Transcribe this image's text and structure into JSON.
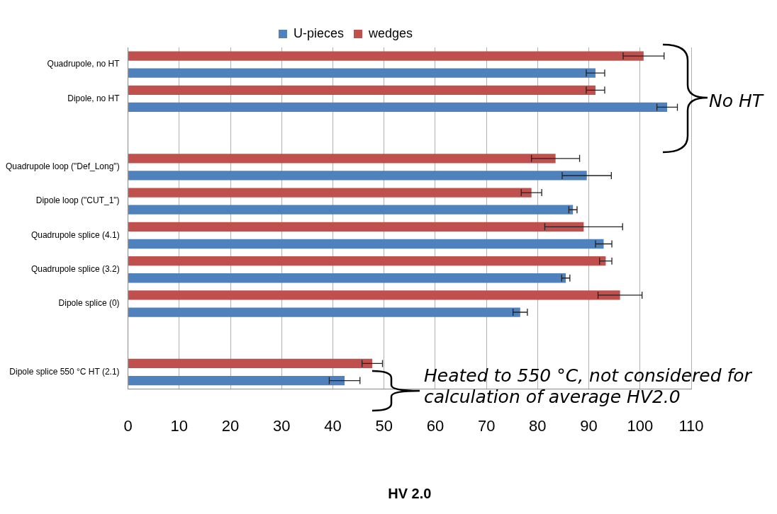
{
  "chart_data": {
    "type": "bar",
    "orientation": "horizontal",
    "xlabel": "HV 2.0",
    "categories": [
      "Quadrupole, no HT",
      "Dipole, no HT",
      null,
      "Quadrupole loop (\"Def_Long\")",
      "Dipole loop (\"CUT_1\")",
      "Quadrupole splice (4.1)",
      "Quadrupole splice (3.2)",
      "Dipole splice (0)",
      null,
      "Dipole splice 550 °C HT (2.1)"
    ],
    "series": [
      {
        "name": "U-pieces",
        "color": "#4f81bd",
        "values": [
          91.3,
          105.3,
          null,
          89.6,
          86.9,
          92.9,
          85.5,
          76.6,
          null,
          42.3
        ],
        "errors": [
          1.8,
          2,
          null,
          4.8,
          0.8,
          1.6,
          0.8,
          1.4,
          null,
          3
        ]
      },
      {
        "name": "wedges",
        "color": "#c0504d",
        "values": [
          100.7,
          91.3,
          null,
          83.5,
          78.8,
          89.0,
          93.3,
          96.1,
          null,
          47.7
        ],
        "errors": [
          4,
          1.8,
          null,
          4.7,
          2,
          7.6,
          1.2,
          4.3,
          null,
          2
        ]
      }
    ],
    "xlim": [
      0,
      110
    ],
    "xticks": [
      0,
      10,
      20,
      30,
      40,
      50,
      60,
      70,
      80,
      90,
      100,
      110
    ],
    "grid": "x",
    "legend": "top",
    "annotations": [
      "No HT",
      "Heated to 550 °C, not considered for calculation of average HV2.0"
    ]
  }
}
